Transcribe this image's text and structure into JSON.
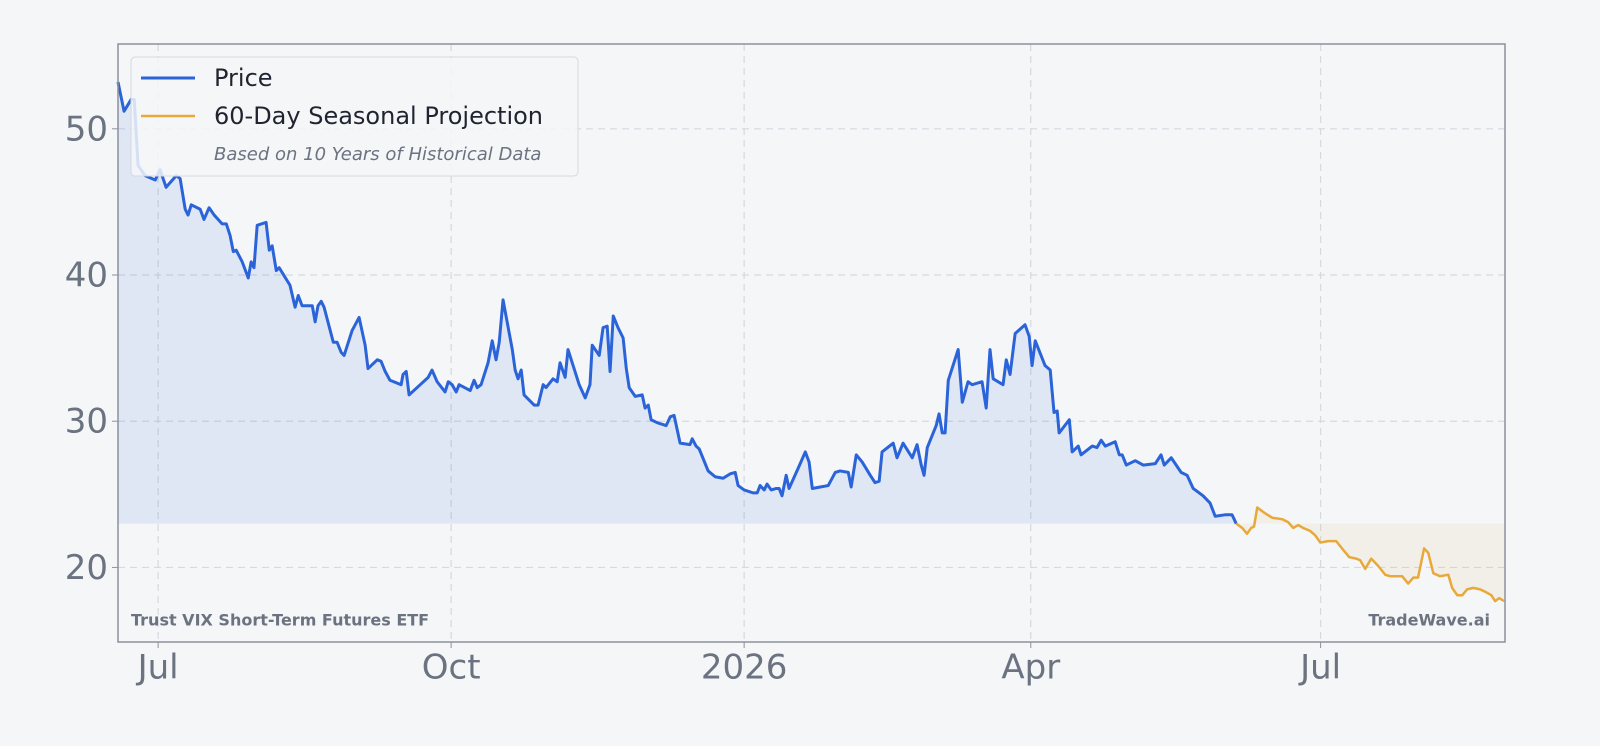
{
  "chart_data": {
    "type": "line",
    "title_note": "Based on 10 Years of Historical Data",
    "annotations": [
      "Trust VIX Short-Term Futures ETF",
      "TradeWave.ai"
    ],
    "legend": "upper left",
    "grid": true,
    "fill": true,
    "xlim": [
      -12.6,
      422.9
    ],
    "xticks": [
      {
        "value": 0,
        "label": "Jul"
      },
      {
        "value": 92,
        "label": "Oct"
      },
      {
        "value": 184,
        "label": "2026"
      },
      {
        "value": 274,
        "label": "Apr"
      },
      {
        "value": 365,
        "label": "Jul"
      }
    ],
    "ylim": [
      14.9,
      55.8
    ],
    "yticks": [
      20,
      30,
      40,
      50
    ],
    "series": [
      {
        "name": "Price",
        "color": "#2b63d9",
        "x": [
          -12.6,
          -10.7,
          -8.5,
          -7.5,
          -6.3,
          -4.1,
          -0.9,
          0.6,
          2.5,
          5.7,
          6.9,
          8.5,
          9.4,
          10.4,
          13.2,
          14.4,
          16.0,
          17.6,
          20.1,
          21.4,
          22.6,
          23.6,
          24.5,
          26.4,
          28.3,
          29.2,
          30.1,
          31.1,
          33.9,
          34.9,
          35.8,
          37.1,
          38.0,
          41.4,
          43.0,
          44.0,
          45.2,
          48.4,
          49.3,
          50.2,
          51.2,
          52.1,
          55.0,
          56.2,
          57.5,
          58.4,
          60.9,
          63.1,
          65.0,
          65.9,
          68.8,
          70.0,
          71.3,
          72.8,
          76.3,
          76.9,
          77.9,
          78.8,
          82.3,
          84.8,
          86.0,
          87.6,
          90.1,
          91.1,
          92.3,
          93.6,
          94.5,
          98.0,
          99.2,
          100.2,
          101.4,
          103.6,
          104.9,
          106.1,
          107.1,
          108.3,
          111.2,
          112.1,
          113.0,
          114.0,
          114.9,
          118.1,
          119.3,
          120.9,
          121.8,
          124.0,
          125.3,
          126.2,
          127.8,
          128.7,
          130.6,
          132.2,
          134.1,
          135.6,
          136.3,
          138.5,
          139.7,
          141.0,
          141.9,
          142.9,
          144.4,
          146.0,
          147.0,
          147.9,
          149.8,
          152.0,
          152.9,
          153.9,
          154.8,
          156.7,
          159.5,
          160.8,
          162.0,
          163.9,
          167.0,
          167.7,
          168.9,
          169.9,
          172.7,
          174.9,
          177.4,
          179.6,
          181.2,
          182.1,
          184.0,
          186.8,
          188.1,
          189.0,
          190.3,
          191.2,
          192.5,
          194.1,
          195.0,
          195.9,
          197.2,
          198.1,
          201.0,
          203.2,
          204.4,
          205.4,
          207.9,
          210.4,
          212.6,
          214.1,
          216.7,
          217.6,
          219.2,
          221.1,
          223.6,
          225.1,
          226.4,
          227.3,
          230.8,
          232.0,
          233.9,
          236.8,
          238.3,
          239.6,
          240.5,
          241.5,
          244.3,
          245.2,
          246.2,
          247.1,
          248.1,
          251.2,
          252.5,
          254.3,
          255.6,
          258.7,
          260.0,
          261.2,
          262.2,
          265.3,
          266.3,
          267.5,
          269.1,
          272.2,
          273.5,
          274.4,
          275.4,
          278.5,
          280.1,
          281.3,
          282.3,
          282.9,
          286.1,
          287.0,
          288.9,
          289.8,
          293.3,
          294.8,
          296.1,
          297.4,
          300.5,
          301.8,
          302.7,
          304.0,
          306.8,
          309.3,
          313.1,
          314.9,
          315.9,
          318.1,
          321.2,
          323.1,
          325.0,
          328.1,
          330.3,
          331.9,
          335.0,
          337.2,
          338.5
        ],
        "values": [
          53.2,
          51.2,
          52.0,
          52.0,
          47.5,
          46.8,
          46.5,
          47.2,
          46.0,
          46.8,
          46.6,
          44.5,
          44.1,
          44.8,
          44.5,
          43.8,
          44.6,
          44.1,
          43.5,
          43.5,
          42.7,
          41.6,
          41.7,
          40.9,
          39.8,
          40.9,
          40.5,
          43.4,
          43.6,
          41.7,
          42.0,
          40.3,
          40.5,
          39.3,
          37.8,
          38.6,
          37.9,
          37.9,
          36.8,
          37.9,
          38.2,
          37.8,
          35.4,
          35.4,
          34.7,
          34.5,
          36.2,
          37.1,
          35.2,
          33.6,
          34.2,
          34.1,
          33.4,
          32.8,
          32.5,
          33.2,
          33.4,
          31.8,
          32.5,
          33.0,
          33.5,
          32.7,
          32.0,
          32.7,
          32.5,
          32.0,
          32.5,
          32.1,
          32.8,
          32.3,
          32.5,
          34.0,
          35.5,
          34.2,
          35.4,
          38.3,
          34.9,
          33.5,
          32.9,
          33.5,
          31.8,
          31.1,
          31.1,
          32.5,
          32.3,
          32.9,
          32.7,
          34.0,
          33.0,
          34.9,
          33.6,
          32.5,
          31.6,
          32.5,
          35.2,
          34.5,
          36.4,
          36.5,
          33.4,
          37.2,
          36.4,
          35.7,
          33.6,
          32.3,
          31.7,
          31.8,
          30.9,
          31.1,
          30.1,
          29.9,
          29.7,
          30.3,
          30.4,
          28.5,
          28.4,
          28.8,
          28.3,
          28.1,
          26.6,
          26.2,
          26.1,
          26.4,
          26.5,
          25.6,
          25.3,
          25.1,
          25.1,
          25.6,
          25.3,
          25.7,
          25.3,
          25.4,
          25.4,
          24.9,
          26.3,
          25.4,
          26.8,
          27.9,
          27.2,
          25.4,
          25.5,
          25.6,
          26.5,
          26.6,
          26.5,
          25.5,
          27.7,
          27.2,
          26.3,
          25.8,
          25.9,
          27.9,
          28.5,
          27.5,
          28.5,
          27.5,
          28.4,
          27.0,
          26.3,
          28.2,
          29.7,
          30.5,
          29.2,
          29.2,
          32.8,
          34.9,
          31.3,
          32.7,
          32.5,
          32.7,
          30.9,
          34.9,
          32.9,
          32.5,
          34.2,
          33.2,
          36.0,
          36.6,
          35.8,
          33.8,
          35.5,
          33.8,
          33.5,
          30.6,
          30.7,
          29.2,
          30.1,
          27.9,
          28.3,
          27.7,
          28.3,
          28.2,
          28.7,
          28.3,
          28.6,
          27.7,
          27.7,
          27.0,
          27.3,
          27.0,
          27.1,
          27.7,
          27.0,
          27.5,
          26.5,
          26.3,
          25.4,
          24.9,
          24.4,
          23.5,
          23.6,
          23.6,
          23.0
        ]
      },
      {
        "name": "60-Day Seasonal Projection",
        "color": "#e8a83a",
        "x": [
          338.5,
          340.4,
          341.9,
          343.2,
          344.1,
          345.1,
          347.6,
          349.8,
          352.9,
          354.8,
          356.4,
          358.0,
          359.5,
          361.7,
          363.3,
          364.9,
          367.4,
          369.9,
          372.1,
          374.0,
          376.2,
          377.4,
          379.0,
          380.9,
          383.1,
          385.3,
          386.8,
          388.7,
          390.6,
          392.5,
          394.1,
          395.6,
          397.5,
          398.8,
          400.4,
          402.5,
          405.1,
          406.3,
          407.9,
          409.5,
          411.0,
          412.9,
          415.1,
          417.0,
          418.6,
          419.8,
          421.1,
          422.6
        ],
        "values": [
          23.0,
          22.7,
          22.3,
          22.7,
          22.8,
          24.1,
          23.7,
          23.4,
          23.3,
          23.1,
          22.7,
          22.9,
          22.7,
          22.5,
          22.2,
          21.7,
          21.8,
          21.8,
          21.2,
          20.7,
          20.6,
          20.5,
          19.9,
          20.6,
          20.1,
          19.5,
          19.4,
          19.4,
          19.4,
          18.9,
          19.3,
          19.3,
          21.3,
          21.0,
          19.6,
          19.4,
          19.5,
          18.6,
          18.1,
          18.1,
          18.5,
          18.6,
          18.5,
          18.3,
          18.1,
          17.7,
          17.9,
          17.7
        ]
      }
    ]
  }
}
